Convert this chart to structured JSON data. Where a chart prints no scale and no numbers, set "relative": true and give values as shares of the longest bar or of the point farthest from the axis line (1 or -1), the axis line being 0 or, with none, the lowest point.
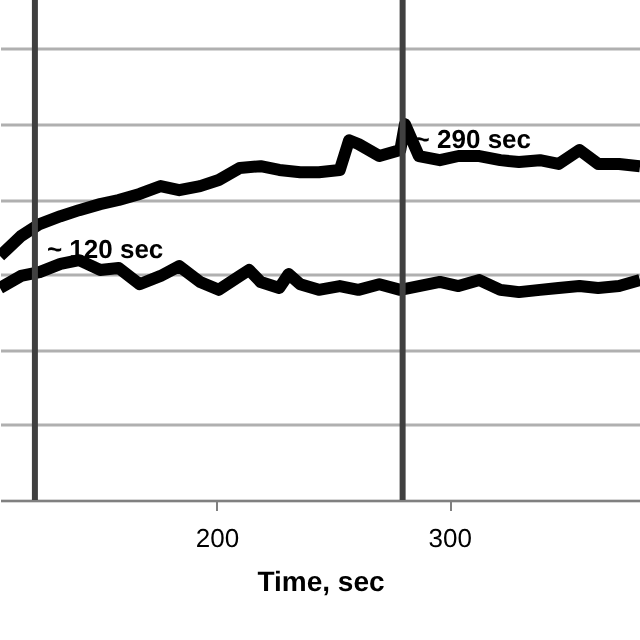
{
  "chart_data": {
    "type": "line",
    "xlabel": "Time, sec",
    "relative": true,
    "grid": "y",
    "marker": "none",
    "line_style": "solid",
    "xlim": [
      107,
      382
    ],
    "xticks": [
      200,
      300
    ],
    "series": [
      {
        "color": "#000000",
        "x": [
          107,
          116,
          124,
          133,
          141,
          150,
          158,
          167,
          176,
          184,
          193,
          201,
          210,
          219,
          227,
          236,
          244,
          253,
          257,
          261,
          270,
          279,
          281,
          287,
          296,
          304,
          313,
          322,
          330,
          339,
          347,
          356,
          364,
          373,
          382
        ],
        "values": [
          0.649,
          0.702,
          0.734,
          0.755,
          0.771,
          0.787,
          0.798,
          0.814,
          0.835,
          0.824,
          0.835,
          0.851,
          0.883,
          0.888,
          0.878,
          0.872,
          0.872,
          0.878,
          0.957,
          0.947,
          0.915,
          0.931,
          1,
          0.915,
          0.904,
          0.915,
          0.915,
          0.904,
          0.899,
          0.904,
          0.894,
          0.931,
          0.894,
          0.894,
          0.888
        ]
      },
      {
        "color": "#000000",
        "x": [
          107,
          116,
          124,
          133,
          141,
          150,
          158,
          167,
          176,
          184,
          193,
          201,
          210,
          214,
          219,
          227,
          231,
          236,
          244,
          253,
          261,
          270,
          279,
          287,
          296,
          304,
          313,
          322,
          330,
          339,
          347,
          356,
          364,
          373,
          382
        ],
        "values": [
          0.564,
          0.596,
          0.606,
          0.628,
          0.638,
          0.612,
          0.617,
          0.574,
          0.596,
          0.622,
          0.58,
          0.559,
          0.596,
          0.612,
          0.58,
          0.564,
          0.601,
          0.574,
          0.559,
          0.569,
          0.559,
          0.574,
          0.559,
          0.569,
          0.58,
          0.569,
          0.585,
          0.559,
          0.553,
          0.559,
          0.564,
          0.569,
          0.564,
          0.569,
          0.585
        ]
      }
    ],
    "ref_lines": [
      {
        "axis": "x",
        "value": 122,
        "label": "~ 120 sec",
        "color": "#404040"
      },
      {
        "axis": "x",
        "value": 280,
        "label": "~ 290 sec",
        "color": "#404040"
      }
    ]
  }
}
